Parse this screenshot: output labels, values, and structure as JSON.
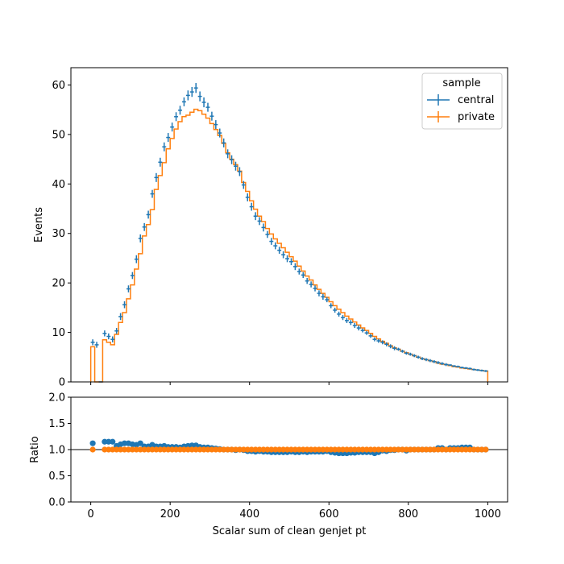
{
  "chart_data": [
    {
      "panel": "main",
      "type": "line",
      "title": "",
      "xlabel": "",
      "ylabel": "Events",
      "xlim": [
        -50,
        1050
      ],
      "ylim": [
        0,
        63.5
      ],
      "yticks": [
        0,
        10,
        20,
        30,
        40,
        50,
        60
      ],
      "xticks": [
        0,
        200,
        400,
        600,
        800,
        1000
      ],
      "grid": false,
      "legend": {
        "title": "sample",
        "placement": "top-right",
        "entries": [
          "central",
          "private"
        ]
      },
      "x_edges_start": 0,
      "x_bin_width": 10,
      "series": [
        {
          "name": "central",
          "color": "#1f77b4",
          "style": "errorbar-step",
          "values": [
            8.0,
            7.5,
            0,
            9.8,
            9.2,
            8.6,
            10.3,
            13.2,
            15.6,
            18.8,
            21.5,
            24.8,
            29.0,
            31.3,
            33.8,
            38.0,
            41.3,
            44.4,
            47.5,
            49.4,
            51.5,
            53.6,
            54.9,
            56.6,
            57.9,
            58.6,
            59.4,
            57.7,
            56.5,
            55.5,
            53.7,
            52.0,
            50.3,
            48.3,
            46.1,
            44.9,
            43.6,
            42.5,
            39.8,
            37.3,
            35.4,
            33.5,
            32.5,
            31.2,
            29.8,
            28.4,
            27.5,
            26.6,
            25.7,
            24.9,
            24.3,
            23.3,
            22.3,
            21.6,
            20.4,
            19.7,
            18.9,
            17.9,
            17.2,
            16.6,
            15.4,
            14.5,
            13.7,
            13.0,
            12.4,
            12.0,
            11.4,
            10.9,
            10.4,
            9.9,
            9.3,
            8.6,
            8.3,
            8.0,
            7.6,
            7.2,
            6.8,
            6.6,
            6.2,
            5.8,
            5.6,
            5.3,
            5.0,
            4.7,
            4.5,
            4.3,
            4.1,
            3.9,
            3.7,
            3.5,
            3.4,
            3.2,
            3.1,
            2.9,
            2.8,
            2.7,
            2.5,
            2.4,
            2.3,
            2.2
          ],
          "errors": [
            0.6,
            0.6,
            0,
            0.6,
            0.6,
            0.6,
            0.6,
            0.7,
            0.7,
            0.7,
            0.7,
            0.8,
            0.8,
            0.8,
            0.8,
            0.8,
            0.9,
            0.9,
            0.9,
            0.9,
            0.9,
            0.9,
            0.9,
            0.9,
            1.0,
            1.0,
            1.0,
            1.0,
            1.0,
            0.9,
            0.9,
            0.9,
            0.9,
            0.9,
            0.9,
            0.9,
            0.9,
            0.9,
            0.8,
            0.8,
            0.8,
            0.8,
            0.8,
            0.8,
            0.7,
            0.7,
            0.7,
            0.7,
            0.7,
            0.7,
            0.7,
            0.7,
            0.6,
            0.6,
            0.6,
            0.6,
            0.6,
            0.6,
            0.6,
            0.5,
            0.5,
            0.5,
            0.5,
            0.5,
            0.5,
            0.5,
            0.5,
            0.5,
            0.4,
            0.4,
            0.4,
            0.4,
            0.4,
            0.4,
            0.4,
            0.4,
            0.4,
            0.3,
            0.3,
            0.3,
            0.3,
            0.3,
            0.3,
            0.3,
            0.3,
            0.3,
            0.3,
            0.3,
            0.3,
            0.3,
            0.2,
            0.2,
            0.2,
            0.2,
            0.2,
            0.2,
            0.2,
            0.2,
            0.2,
            0.2
          ]
        },
        {
          "name": "private",
          "color": "#ff7f0e",
          "style": "step",
          "values": [
            7.1,
            0,
            0,
            8.5,
            8.0,
            7.5,
            9.6,
            12.0,
            14.0,
            16.8,
            19.6,
            22.8,
            25.9,
            29.5,
            31.8,
            34.8,
            38.9,
            41.7,
            44.3,
            47.1,
            49.2,
            51.1,
            52.6,
            53.6,
            53.9,
            54.5,
            55.1,
            54.8,
            54.1,
            53.3,
            52.2,
            51.0,
            49.8,
            48.2,
            46.3,
            45.0,
            43.9,
            42.6,
            40.3,
            38.5,
            36.6,
            34.9,
            33.5,
            32.4,
            31.0,
            29.9,
            28.9,
            28.0,
            27.1,
            26.2,
            25.3,
            24.4,
            23.4,
            22.4,
            21.4,
            20.6,
            19.6,
            18.7,
            17.9,
            17.1,
            16.2,
            15.4,
            14.7,
            14.0,
            13.3,
            12.7,
            12.1,
            11.5,
            10.9,
            10.4,
            9.8,
            9.2,
            8.7,
            8.2,
            7.8,
            7.3,
            6.9,
            6.6,
            6.2,
            5.9,
            5.6,
            5.3,
            5.0,
            4.7,
            4.5,
            4.3,
            4.1,
            3.8,
            3.6,
            3.5,
            3.3,
            3.1,
            3.0,
            2.8,
            2.7,
            2.6,
            2.5,
            2.4,
            2.3,
            2.2
          ]
        }
      ]
    },
    {
      "panel": "ratio",
      "type": "scatter",
      "title": "",
      "xlabel": "Scalar sum of clean genjet pt",
      "ylabel": "Ratio",
      "xlim": [
        -50,
        1050
      ],
      "ylim": [
        0.0,
        2.0
      ],
      "yticks": [
        "0.0",
        "0.5",
        "1.0",
        "1.5",
        "2.0"
      ],
      "xticks": [
        0,
        200,
        400,
        600,
        800,
        1000
      ],
      "reference_line": 1.0,
      "grid": false,
      "x_centers_start": 5,
      "x_step": 10,
      "series": [
        {
          "name": "central",
          "color": "#1f77b4",
          "values": [
            1.12,
            null,
            null,
            1.15,
            1.15,
            1.15,
            1.07,
            1.1,
            1.12,
            1.12,
            1.1,
            1.09,
            1.12,
            1.06,
            1.06,
            1.09,
            1.06,
            1.06,
            1.07,
            1.05,
            1.05,
            1.05,
            1.04,
            1.06,
            1.07,
            1.08,
            1.08,
            1.05,
            1.04,
            1.04,
            1.03,
            1.02,
            1.01,
            1.0,
            1.0,
            1.0,
            0.99,
            1.0,
            0.99,
            0.97,
            0.97,
            0.96,
            0.97,
            0.96,
            0.96,
            0.95,
            0.95,
            0.95,
            0.95,
            0.95,
            0.96,
            0.95,
            0.95,
            0.96,
            0.95,
            0.96,
            0.96,
            0.96,
            0.96,
            0.97,
            0.95,
            0.94,
            0.93,
            0.93,
            0.93,
            0.94,
            0.94,
            0.95,
            0.95,
            0.95,
            0.95,
            0.93,
            0.95,
            0.98,
            0.97,
            0.99,
            0.99,
            1.0,
            1.0,
            0.98,
            1.0,
            1.0,
            1.0,
            1.0,
            1.0,
            1.0,
            1.0,
            1.03,
            1.03,
            1.0,
            1.03,
            1.03,
            1.03,
            1.04,
            1.04,
            1.04,
            1.0,
            1.0,
            1.0,
            1.0
          ]
        },
        {
          "name": "private",
          "color": "#ff7f0e",
          "values": [
            1.0,
            null,
            null,
            1.0,
            1.0,
            1.0,
            1.0,
            1.0,
            1.0,
            1.0,
            1.0,
            1.0,
            1.0,
            1.0,
            1.0,
            1.0,
            1.0,
            1.0,
            1.0,
            1.0,
            1.0,
            1.0,
            1.0,
            1.0,
            1.0,
            1.0,
            1.0,
            1.0,
            1.0,
            1.0,
            1.0,
            1.0,
            1.0,
            1.0,
            1.0,
            1.0,
            1.0,
            1.0,
            1.0,
            1.0,
            1.0,
            1.0,
            1.0,
            1.0,
            1.0,
            1.0,
            1.0,
            1.0,
            1.0,
            1.0,
            1.0,
            1.0,
            1.0,
            1.0,
            1.0,
            1.0,
            1.0,
            1.0,
            1.0,
            1.0,
            1.0,
            1.0,
            1.0,
            1.0,
            1.0,
            1.0,
            1.0,
            1.0,
            1.0,
            1.0,
            1.0,
            1.0,
            1.0,
            1.0,
            1.0,
            1.0,
            1.0,
            1.0,
            1.0,
            1.0,
            1.0,
            1.0,
            1.0,
            1.0,
            1.0,
            1.0,
            1.0,
            1.0,
            1.0,
            1.0,
            1.0,
            1.0,
            1.0,
            1.0,
            1.0,
            1.0,
            1.0,
            1.0,
            1.0,
            1.0
          ]
        }
      ]
    }
  ]
}
